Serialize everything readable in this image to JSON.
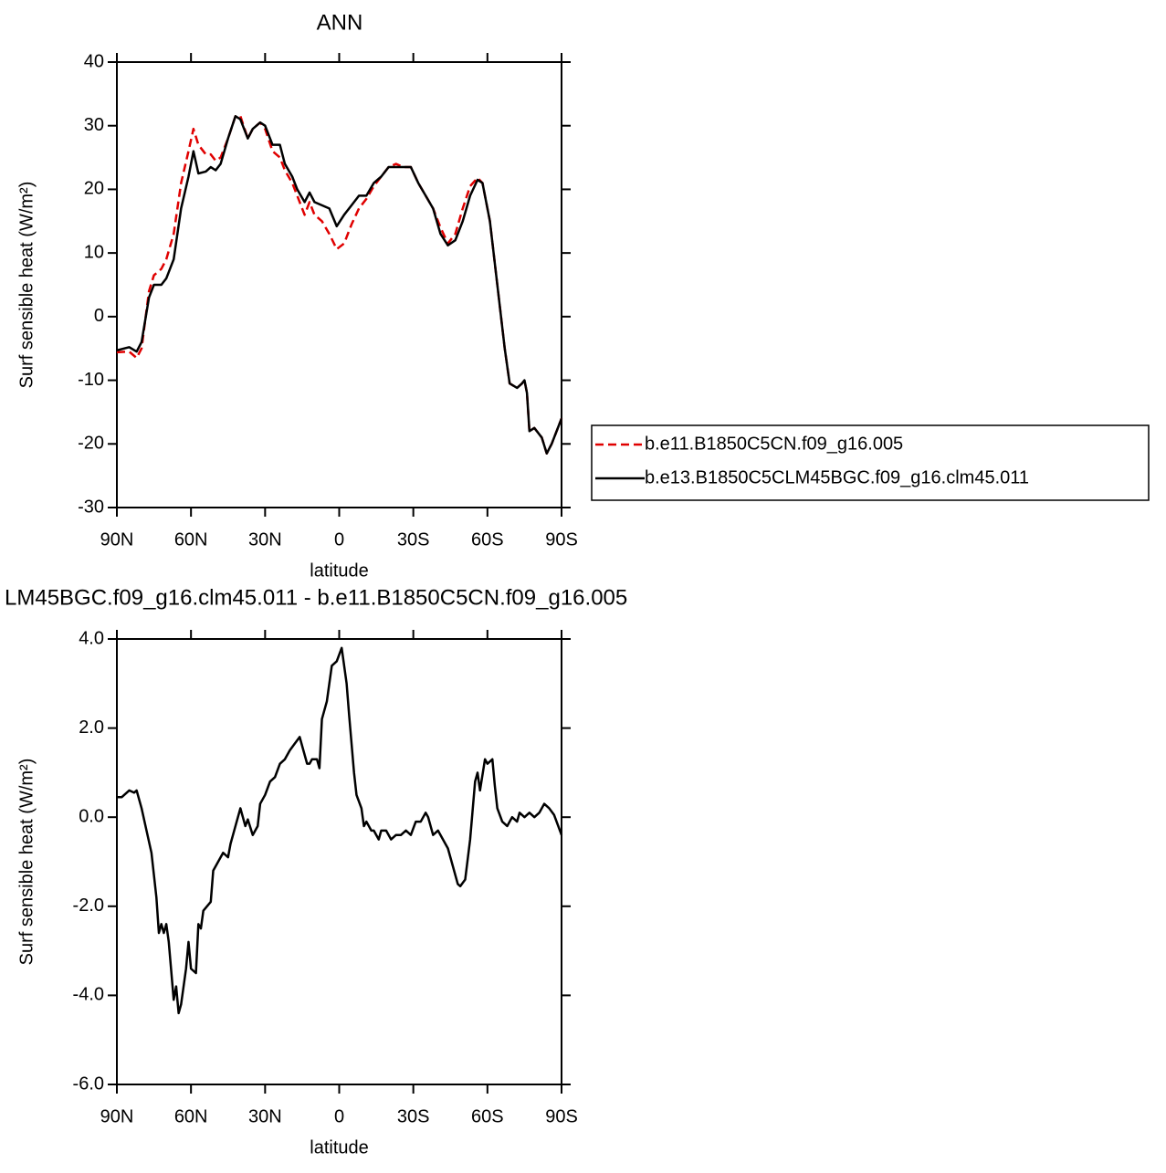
{
  "chart_data": [
    {
      "type": "line",
      "title": "ANN",
      "xlabel": "latitude",
      "ylabel": "Surf sensible heat (W/m²)",
      "xlim": [
        90,
        -90
      ],
      "ylim": [
        -30,
        40
      ],
      "xticks": [
        {
          "value": 90,
          "label": "90N"
        },
        {
          "value": 60,
          "label": "60N"
        },
        {
          "value": 30,
          "label": "30N"
        },
        0,
        {
          "value": -30,
          "label": "30S"
        },
        {
          "value": -60,
          "label": "60S"
        },
        {
          "value": -90,
          "label": "90S"
        }
      ],
      "yticks": [
        -30,
        -20,
        -10,
        0,
        10,
        20,
        30,
        40
      ],
      "legend": "right",
      "x": [
        90,
        85,
        82,
        80,
        77,
        75,
        72,
        70,
        67,
        64,
        61,
        59,
        57,
        54,
        52,
        50,
        48,
        45,
        42,
        40,
        37,
        35,
        32,
        30,
        27,
        24,
        22,
        19,
        17,
        14,
        12,
        10,
        7,
        4,
        1,
        -2,
        -5,
        -8,
        -11,
        -14,
        -17,
        -20,
        -23,
        -26,
        -29,
        -32,
        -35,
        -38,
        -41,
        -44,
        -47,
        -50,
        -53,
        -56,
        -58,
        -61,
        -64,
        -67,
        -69,
        -72,
        -74,
        -75,
        -76,
        -77,
        -79,
        -82,
        -84,
        -86,
        -89,
        -90
      ],
      "series": [
        {
          "name": "b.e11.B1850C5CN.f09_g16.005",
          "color": "#e00000",
          "dash": true,
          "values": [
            -5.6,
            -5.5,
            -6.5,
            -5,
            4,
            6.5,
            7.5,
            9,
            13,
            21,
            26,
            29.5,
            27,
            25.5,
            25.5,
            24.5,
            25,
            28,
            31.5,
            31.5,
            28,
            29.5,
            30.5,
            29.5,
            26,
            25,
            23,
            21,
            19,
            16,
            18,
            16,
            15,
            13,
            10.6,
            11.5,
            14.5,
            17,
            18.5,
            20.5,
            22,
            23.5,
            24,
            23.5,
            23.5,
            21,
            19,
            17,
            14,
            11.5,
            13,
            17,
            20.5,
            21.8,
            21,
            15,
            5,
            -5,
            -10.5,
            -11.2,
            -10.5,
            -10,
            -12,
            -18,
            -17.5,
            -19,
            -21.5,
            -20,
            -17,
            -16
          ]
        },
        {
          "name": "b.e13.B1850C5CLM45BGC.f09_g16.clm45.011",
          "color": "#000000",
          "dash": false,
          "values": [
            -5.3,
            -4.8,
            -5.5,
            -4,
            3,
            5,
            5,
            6,
            9,
            17,
            22,
            26,
            22.5,
            22.8,
            23.5,
            23,
            24,
            28,
            31.5,
            31,
            28,
            29.5,
            30.5,
            30,
            27,
            27,
            24,
            22,
            20,
            18,
            19.5,
            18,
            17.5,
            17,
            14.2,
            16,
            17.5,
            19,
            19,
            21,
            22,
            23.5,
            23.5,
            23.5,
            23.5,
            21,
            19,
            17,
            13,
            11.2,
            12,
            15,
            19,
            21.5,
            21,
            15,
            5,
            -5,
            -10.5,
            -11.2,
            -10.5,
            -10,
            -12,
            -18,
            -17.5,
            -19,
            -21.5,
            -20,
            -17,
            -16
          ]
        }
      ]
    },
    {
      "type": "line",
      "title": "LM45BGC.f09_g16.clm45.011 - b.e11.B1850C5CN.f09_g16.005",
      "xlabel": "latitude",
      "ylabel": "Surf sensible heat (W/m²)",
      "xlim": [
        90,
        -90
      ],
      "ylim": [
        -6,
        4
      ],
      "xticks": [
        {
          "value": 90,
          "label": "90N"
        },
        {
          "value": 60,
          "label": "60N"
        },
        {
          "value": 30,
          "label": "30N"
        },
        0,
        {
          "value": -30,
          "label": "30S"
        },
        {
          "value": -60,
          "label": "60S"
        },
        {
          "value": -90,
          "label": "90S"
        }
      ],
      "yticks": [
        {
          "value": -6,
          "label": "-6.0"
        },
        {
          "value": -4,
          "label": "-4.0"
        },
        {
          "value": -2,
          "label": "-2.0"
        },
        {
          "value": 0,
          "label": "0.0"
        },
        {
          "value": 2,
          "label": "2.0"
        },
        {
          "value": 4,
          "label": "4.0"
        }
      ],
      "x": [
        90,
        88,
        85,
        83,
        82,
        80,
        78,
        76,
        74,
        73,
        72,
        71,
        70,
        69,
        67,
        66,
        65,
        64,
        62,
        61,
        60,
        58,
        57,
        56,
        55,
        52,
        51,
        49,
        47,
        45,
        44,
        42,
        40,
        38,
        37,
        35,
        33,
        32,
        30,
        28,
        26,
        24,
        22,
        20,
        18,
        16,
        15,
        13,
        12,
        11,
        9,
        8,
        7,
        5,
        3,
        1,
        -1,
        -3,
        -4,
        -6,
        -7,
        -9,
        -10,
        -11,
        -13,
        -14,
        -16,
        -17,
        -19,
        -21,
        -23,
        -25,
        -27,
        -29,
        -31,
        -33,
        -35,
        -36,
        -38,
        -40,
        -42,
        -44,
        -46,
        -48,
        -49,
        -51,
        -53,
        -55,
        -56,
        -57,
        -59,
        -60,
        -62,
        -63,
        -64,
        -66,
        -68,
        -69,
        -70,
        -72,
        -73,
        -75,
        -77,
        -79,
        -81,
        -83,
        -85,
        -87,
        -90
      ],
      "series": [
        {
          "color": "#000000",
          "values": [
            0.45,
            0.45,
            0.6,
            0.55,
            0.6,
            0.2,
            -0.3,
            -0.8,
            -1.8,
            -2.6,
            -2.4,
            -2.6,
            -2.4,
            -2.8,
            -4.1,
            -3.8,
            -4.4,
            -4.2,
            -3.4,
            -2.8,
            -3.4,
            -3.5,
            -2.4,
            -2.5,
            -2.1,
            -1.9,
            -1.2,
            -1.0,
            -0.8,
            -0.9,
            -0.6,
            -0.2,
            0.2,
            -0.2,
            -0.05,
            -0.4,
            -0.2,
            0.3,
            0.5,
            0.8,
            0.9,
            1.2,
            1.3,
            1.5,
            1.65,
            1.8,
            1.6,
            1.2,
            1.2,
            1.3,
            1.3,
            1.1,
            2.2,
            2.6,
            3.4,
            3.5,
            3.8,
            3.0,
            2.3,
            1.0,
            0.5,
            0.2,
            -0.2,
            -0.1,
            -0.3,
            -0.3,
            -0.5,
            -0.3,
            -0.3,
            -0.5,
            -0.4,
            -0.4,
            -0.3,
            -0.4,
            -0.1,
            -0.1,
            0.1,
            0,
            -0.4,
            -0.3,
            -0.5,
            -0.7,
            -1.1,
            -1.5,
            -1.55,
            -1.4,
            -0.5,
            0.8,
            1.0,
            0.6,
            1.3,
            1.2,
            1.3,
            0.7,
            0.2,
            -0.1,
            -0.2,
            -0.1,
            0,
            -0.1,
            0.1,
            0,
            0.1,
            0,
            0.1,
            0.3,
            0.2,
            0.05,
            -0.4
          ]
        }
      ]
    }
  ]
}
